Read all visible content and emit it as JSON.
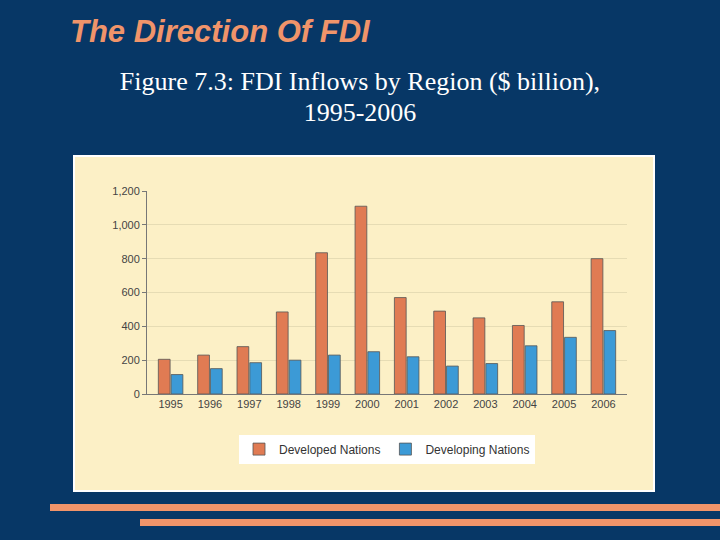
{
  "chart_data": {
    "type": "bar",
    "title": "The Direction Of FDI",
    "subtitle": "Figure 7.3: FDI Inflows by Region ($ billion), 1995-2006",
    "categories": [
      "1995",
      "1996",
      "1997",
      "1998",
      "1999",
      "2000",
      "2001",
      "2002",
      "2003",
      "2004",
      "2005",
      "2006"
    ],
    "series": [
      {
        "name": "Developed Nations",
        "color": "#e07b53",
        "values": [
          205,
          230,
          280,
          485,
          835,
          1110,
          570,
          490,
          450,
          405,
          545,
          800
        ]
      },
      {
        "name": "Developing Nations",
        "color": "#3c9ad6",
        "values": [
          115,
          150,
          185,
          200,
          230,
          250,
          220,
          165,
          180,
          285,
          335,
          375
        ]
      }
    ],
    "ylim": [
      0,
      1200
    ],
    "yticks": [
      0,
      200,
      400,
      600,
      800,
      {
        "value": 1000,
        "label": "1,000"
      },
      {
        "value": 1200,
        "label": "1,200"
      }
    ],
    "grid": true,
    "legend": "bottom"
  }
}
